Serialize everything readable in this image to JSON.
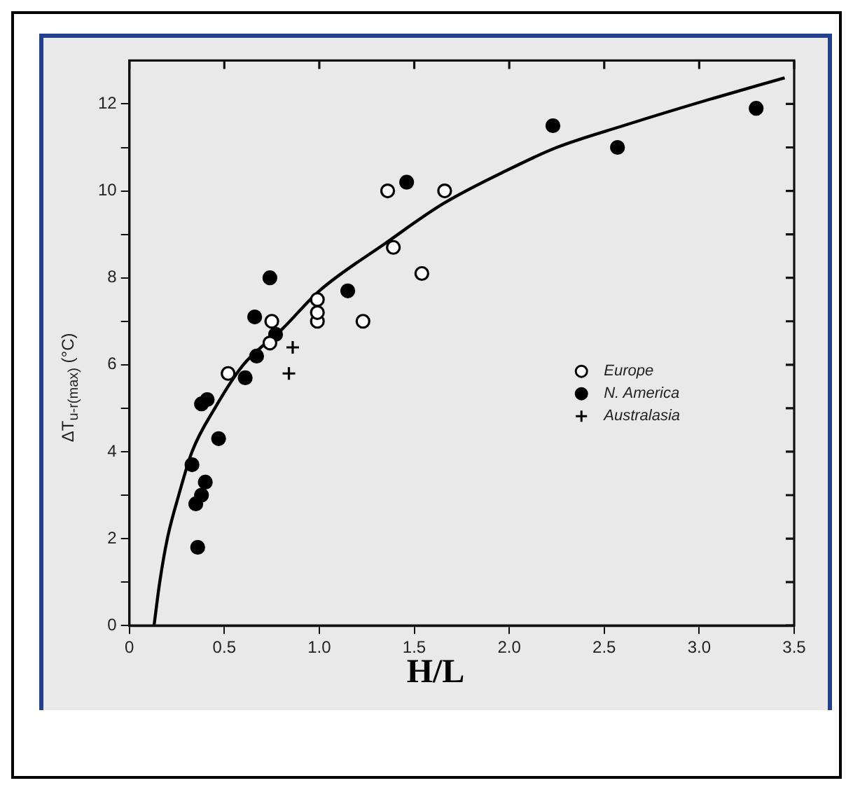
{
  "chart_data": {
    "type": "scatter",
    "xlabel": "H/L",
    "ylabel": "ΔT$_{u-r(max)}$ (°C)",
    "xlim": [
      0,
      3.5
    ],
    "xticks": [
      0,
      {
        "value": 0.5,
        "label": "0.5"
      },
      {
        "value": 1,
        "label": "1.0"
      },
      {
        "value": 1.5,
        "label": "1.5"
      },
      {
        "value": 2,
        "label": "2.0"
      },
      {
        "value": 2.5,
        "label": "2.5"
      },
      {
        "value": 3,
        "label": "3.0"
      },
      {
        "value": 3.5,
        "label": "3.5"
      }
    ],
    "ylim": [
      0,
      13
    ],
    "yticks": [
      0,
      {
        "value": 1,
        "label": null
      },
      2,
      {
        "value": 3,
        "label": null
      },
      4,
      {
        "value": 5,
        "label": null
      },
      6,
      {
        "value": 7,
        "label": null
      },
      8,
      {
        "value": 9,
        "label": null
      },
      10,
      {
        "value": 11,
        "label": null
      },
      12
    ],
    "grid": false,
    "legend": "right",
    "series": [
      {
        "name": "Europe",
        "color": "#ffffff",
        "marker": "circle",
        "x": [
          1.36,
          1.39,
          1.54,
          1.66,
          0.75,
          0.74,
          0.99,
          0.99,
          0.99,
          1.23,
          0.52
        ],
        "values": [
          10.0,
          8.7,
          8.1,
          10.0,
          7.0,
          6.5,
          7.5,
          7.0,
          7.2,
          7.0,
          5.8
        ]
      },
      {
        "name": "N. America",
        "color": "#000000",
        "marker": "circle",
        "x": [
          1.46,
          2.23,
          2.57,
          3.3,
          0.74,
          0.66,
          0.77,
          1.15,
          0.67,
          0.61,
          0.33,
          0.41,
          0.38,
          0.47,
          0.4,
          0.38,
          0.35,
          0.36
        ],
        "values": [
          10.2,
          11.5,
          11.0,
          11.9,
          8.0,
          7.1,
          6.7,
          7.7,
          6.2,
          5.7,
          3.7,
          5.2,
          5.1,
          4.3,
          3.3,
          3.0,
          2.8,
          1.8
        ]
      },
      {
        "name": "Australasia",
        "color": "#000000",
        "marker": "cross",
        "x": [
          0.86,
          0.84
        ],
        "values": [
          6.4,
          5.8
        ]
      },
      {
        "type": "line",
        "color": "#000000",
        "marker": "none",
        "line_style": "solid",
        "x": [
          0.13,
          0.16,
          0.2,
          0.26,
          0.33,
          0.45,
          0.6,
          0.8,
          1.0,
          1.35,
          1.65,
          2.0,
          2.25,
          2.6,
          3.05,
          3.45
        ],
        "values": [
          0,
          1,
          2,
          3,
          4,
          5,
          6,
          6.8,
          7.7,
          8.8,
          9.7,
          10.5,
          11.0,
          11.5,
          12.1,
          12.6
        ]
      }
    ]
  }
}
